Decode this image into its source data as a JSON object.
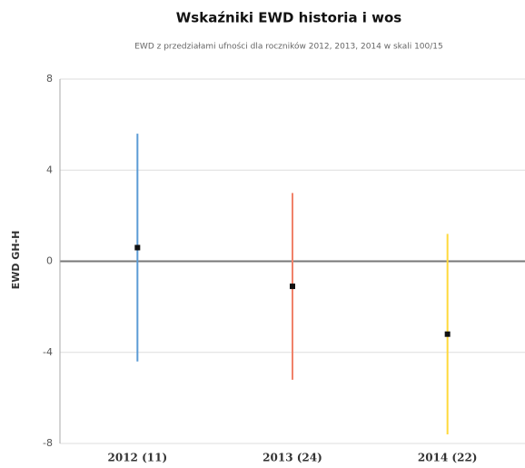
{
  "chart_data": {
    "type": "errorbar",
    "title": "Wskaźniki EWD historia i wos",
    "subtitle": "EWD z przedziałami ufności dla roczników 2012, 2013, 2014 w skali 100/15",
    "y_label": "EWD GH-H",
    "categories": [
      "2012 (11)",
      "2013 (24)",
      "2014 (22)"
    ],
    "series": [
      {
        "name": "EWD",
        "color": "#111111",
        "values": [
          0.6,
          -1.1,
          -3.2
        ],
        "errors": [
          5.0,
          4.1,
          4.4
        ],
        "bar_colors": [
          "#5b9bd5",
          "#f0826a",
          "#ffd93b"
        ]
      }
    ],
    "ylim": [
      -8,
      8
    ],
    "yticks": [
      -8,
      -4,
      0,
      4,
      8
    ],
    "grid": true
  }
}
